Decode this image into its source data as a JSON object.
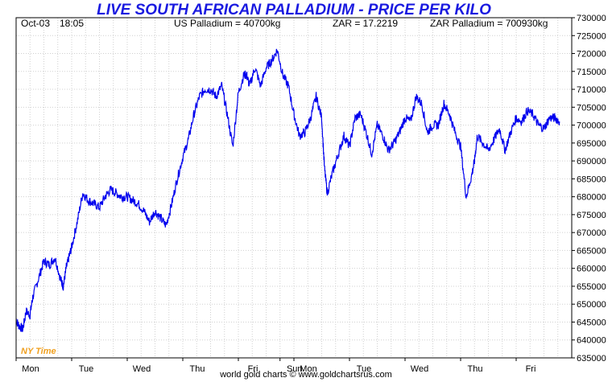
{
  "header": {
    "date": "Oct-03",
    "time": "18:05",
    "us_price": "US Palladium = 40700kg",
    "fx_rate": "ZAR = 17.2219",
    "local_price": "ZAR Palladium = 700930kg"
  },
  "time_zone_label": "NY Time",
  "footer": "world gold charts © www.goldchartsrus.com",
  "colors": {
    "line": "#0000ee",
    "title": "#1a1ae0",
    "grid": "#d0d0d0",
    "timezone": "#f0a020"
  },
  "chart_data": {
    "type": "line",
    "title": "LIVE SOUTH AFRICAN PALLADIUM - PRICE PER KILO",
    "xlabel": "",
    "ylabel": "",
    "ylim": [
      635000,
      730000
    ],
    "yticks": [
      635000,
      640000,
      645000,
      650000,
      655000,
      660000,
      665000,
      670000,
      675000,
      680000,
      685000,
      690000,
      695000,
      700000,
      705000,
      710000,
      715000,
      720000,
      725000,
      730000
    ],
    "ytick_labels": [
      "635000",
      "640000",
      "645000",
      "650000",
      "655000",
      "660000",
      "665000",
      "670000",
      "675000",
      "680000",
      "685000",
      "690000",
      "695000",
      "700000",
      "705000",
      "710000",
      "715000",
      "720000",
      "725000",
      "730000"
    ],
    "xlim": [
      0,
      10
    ],
    "x_ticks": [
      0,
      1,
      2,
      3,
      4,
      4.75,
      5,
      6,
      7,
      8,
      9
    ],
    "x_tick_labels": [
      "Mon",
      "Tue",
      "Wed",
      "Thu",
      "Fri",
      "Sun",
      "Mon",
      "Tue",
      "Wed",
      "Thu",
      "Fri"
    ],
    "grid": true,
    "series": [
      {
        "x": [
          0.0,
          0.05,
          0.12,
          0.18,
          0.25,
          0.3,
          0.4,
          0.5,
          0.6,
          0.7,
          0.8,
          0.85,
          0.9,
          0.95,
          1.0,
          1.1,
          1.2,
          1.3,
          1.4,
          1.5,
          1.6,
          1.7,
          1.8,
          1.9,
          2.0,
          2.1,
          2.2,
          2.3,
          2.4,
          2.5,
          2.6,
          2.7,
          2.8,
          2.9,
          3.0,
          3.1,
          3.2,
          3.3,
          3.4,
          3.5,
          3.6,
          3.7,
          3.8,
          3.9,
          4.0,
          4.1,
          4.15,
          4.2,
          4.3,
          4.4,
          4.5,
          4.6,
          4.7,
          4.8,
          4.9,
          5.0,
          5.1,
          5.2,
          5.3,
          5.4,
          5.5,
          5.55,
          5.6,
          5.7,
          5.8,
          5.9,
          6.0,
          6.1,
          6.2,
          6.3,
          6.4,
          6.5,
          6.6,
          6.7,
          6.8,
          6.9,
          7.0,
          7.1,
          7.2,
          7.3,
          7.4,
          7.5,
          7.6,
          7.7,
          7.8,
          7.9,
          8.0,
          8.1,
          8.2,
          8.25,
          8.3,
          8.4,
          8.5,
          8.6,
          8.7,
          8.8,
          8.9,
          9.0,
          9.1,
          9.2,
          9.3,
          9.4,
          9.5,
          9.6,
          9.7,
          9.78
        ],
        "values": [
          645500,
          644000,
          643000,
          648000,
          647000,
          652000,
          657000,
          662000,
          661000,
          663000,
          657000,
          655000,
          660000,
          663000,
          666000,
          673000,
          681000,
          679000,
          678000,
          677000,
          680000,
          682000,
          681000,
          680000,
          680000,
          679000,
          678000,
          676000,
          673000,
          676000,
          674000,
          672000,
          678000,
          685000,
          691000,
          696000,
          703000,
          708000,
          710000,
          710000,
          708000,
          711000,
          703000,
          694000,
          709000,
          714000,
          714000,
          711000,
          716000,
          711000,
          716000,
          718000,
          721000,
          714000,
          711000,
          703000,
          697000,
          698000,
          702000,
          708000,
          702000,
          688000,
          681000,
          687000,
          692000,
          697000,
          694000,
          702000,
          703000,
          698000,
          692000,
          700000,
          697000,
          693000,
          695000,
          698000,
          702000,
          701000,
          708000,
          706000,
          698000,
          700000,
          700000,
          706000,
          703000,
          698000,
          694000,
          680000,
          686000,
          690000,
          697000,
          695000,
          693000,
          696000,
          699000,
          693000,
          698000,
          702000,
          701000,
          704000,
          703000,
          700000,
          699000,
          702000,
          702000,
          701000
        ]
      }
    ]
  }
}
